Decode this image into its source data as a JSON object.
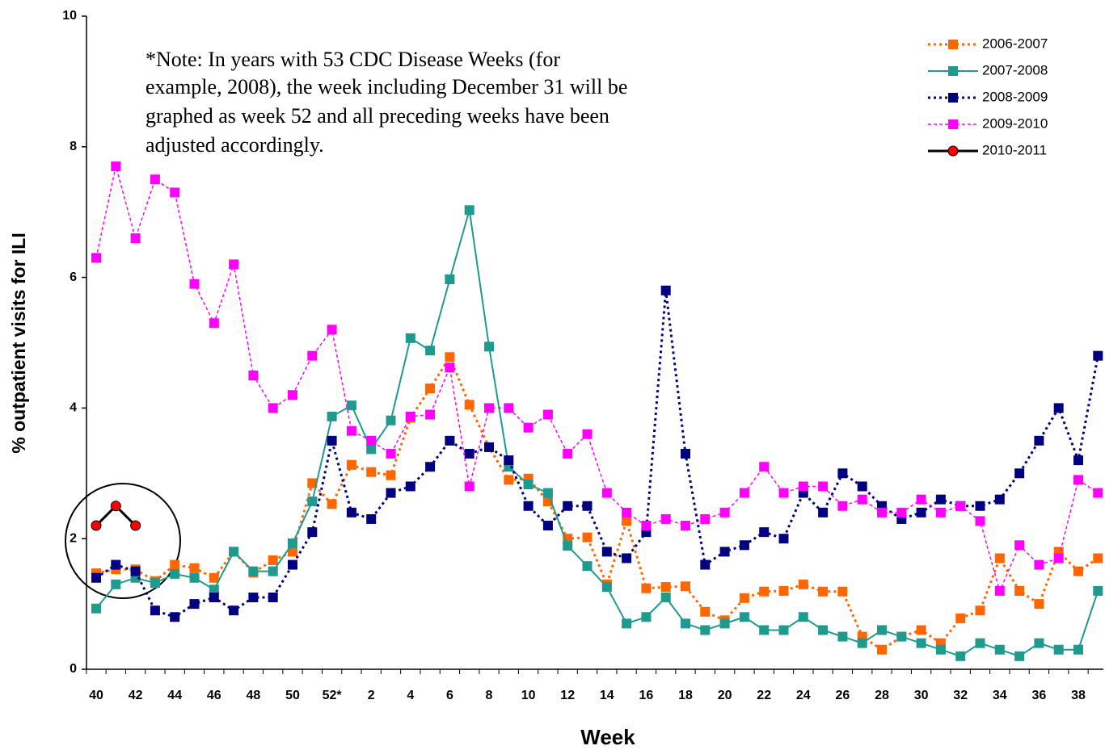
{
  "chart_data": {
    "type": "line",
    "x_label": "Week",
    "y_label": "% outpatient visits for ILI",
    "annotation": [
      "*Note: In years with 53 CDC Disease Weeks (for",
      "example, 2008), the week including December 31 will be",
      "graphed as week 52 and all preceding weeks have been",
      "adjusted accordingly."
    ],
    "categories": [
      "40",
      null,
      "42",
      null,
      "44",
      null,
      "46",
      null,
      "48",
      null,
      "50",
      null,
      "52*",
      null,
      "2",
      null,
      "4",
      null,
      "6",
      null,
      "8",
      null,
      "10",
      null,
      "12",
      null,
      "14",
      null,
      "16",
      null,
      "18",
      null,
      "20",
      null,
      "22",
      null,
      "24",
      null,
      "26",
      null,
      "28",
      null,
      "30",
      null,
      "32",
      null,
      "34",
      null,
      "36",
      null,
      "38",
      null
    ],
    "ylim": [
      0,
      10
    ],
    "yticks": [
      0,
      2,
      4,
      6,
      8,
      10
    ],
    "legend": "top-right",
    "series": [
      {
        "name": "2006-2007",
        "color": "#ff6600",
        "linestyle": "dotted",
        "marker": "square",
        "values": [
          1.47,
          1.53,
          1.53,
          1.35,
          1.6,
          1.55,
          1.4,
          1.8,
          1.48,
          1.67,
          1.8,
          2.85,
          2.53,
          3.13,
          3.02,
          2.97,
          3.85,
          4.3,
          4.78,
          4.05,
          3.4,
          2.9,
          2.92,
          2.57,
          2.0,
          2.02,
          1.3,
          2.27,
          1.24,
          1.26,
          1.27,
          0.88,
          0.75,
          1.09,
          1.19,
          1.2,
          1.3,
          1.19,
          1.19,
          0.5,
          0.3,
          0.5,
          0.6,
          0.4,
          0.78,
          0.9,
          1.7,
          1.2,
          1.0,
          1.8,
          1.5,
          1.7
        ]
      },
      {
        "name": "2007-2008",
        "color": "#1f9a8f",
        "linestyle": "solid",
        "marker": "square",
        "values": [
          0.93,
          1.3,
          1.4,
          1.32,
          1.46,
          1.4,
          1.22,
          1.8,
          1.5,
          1.5,
          1.93,
          2.57,
          3.87,
          4.04,
          3.37,
          3.81,
          5.07,
          4.88,
          5.97,
          7.03,
          4.94,
          3.1,
          2.83,
          2.7,
          1.89,
          1.58,
          1.26,
          0.7,
          0.8,
          1.1,
          0.7,
          0.6,
          0.7,
          0.8,
          0.6,
          0.6,
          0.8,
          0.6,
          0.5,
          0.4,
          0.6,
          0.5,
          0.4,
          0.3,
          0.2,
          0.4,
          0.3,
          0.2,
          0.4,
          0.3,
          0.3,
          1.2
        ]
      },
      {
        "name": "2008-2009",
        "color": "#000080",
        "linestyle": "dotted",
        "marker": "square",
        "values": [
          1.4,
          1.6,
          1.5,
          0.9,
          0.8,
          1.0,
          1.1,
          0.9,
          1.1,
          1.1,
          1.6,
          2.1,
          3.5,
          2.4,
          2.3,
          2.7,
          2.8,
          3.1,
          3.5,
          3.3,
          3.4,
          3.2,
          2.5,
          2.2,
          2.5,
          2.5,
          1.8,
          1.7,
          2.1,
          5.8,
          3.3,
          1.6,
          1.8,
          1.9,
          2.1,
          2.0,
          2.7,
          2.4,
          3.0,
          2.8,
          2.5,
          2.3,
          2.4,
          2.6,
          2.5,
          2.5,
          2.6,
          3.0,
          3.5,
          4.0,
          3.2,
          4.8
        ]
      },
      {
        "name": "2009-2010",
        "color": "#ff00ff",
        "linestyle": "dashed",
        "marker": "square",
        "values": [
          6.3,
          7.7,
          6.6,
          7.5,
          7.3,
          5.9,
          5.3,
          6.2,
          4.5,
          4.0,
          4.2,
          4.8,
          5.2,
          3.65,
          3.5,
          3.3,
          3.87,
          3.9,
          4.62,
          2.8,
          4.0,
          4.0,
          3.7,
          3.9,
          3.3,
          3.6,
          2.7,
          2.4,
          2.2,
          2.3,
          2.2,
          2.3,
          2.4,
          2.7,
          3.1,
          2.7,
          2.8,
          2.8,
          2.5,
          2.6,
          2.4,
          2.4,
          2.6,
          2.4,
          2.5,
          2.27,
          1.2,
          1.9,
          1.6,
          1.7,
          2.9,
          2.7
        ]
      },
      {
        "name": "2010-2011",
        "color": "#000000",
        "linestyle": "solid",
        "marker": "circle",
        "marker_color": "#ff0000",
        "values": [
          2.2,
          2.5,
          2.2,
          null,
          null,
          null,
          null,
          null,
          null,
          null,
          null,
          null,
          null,
          null,
          null,
          null,
          null,
          null,
          null,
          null,
          null,
          null,
          null,
          null,
          null,
          null,
          null,
          null,
          null,
          null,
          null,
          null,
          null,
          null,
          null,
          null,
          null,
          null,
          null,
          null,
          null,
          null,
          null,
          null,
          null,
          null,
          null,
          null,
          null,
          null,
          null,
          null
        ]
      }
    ]
  }
}
